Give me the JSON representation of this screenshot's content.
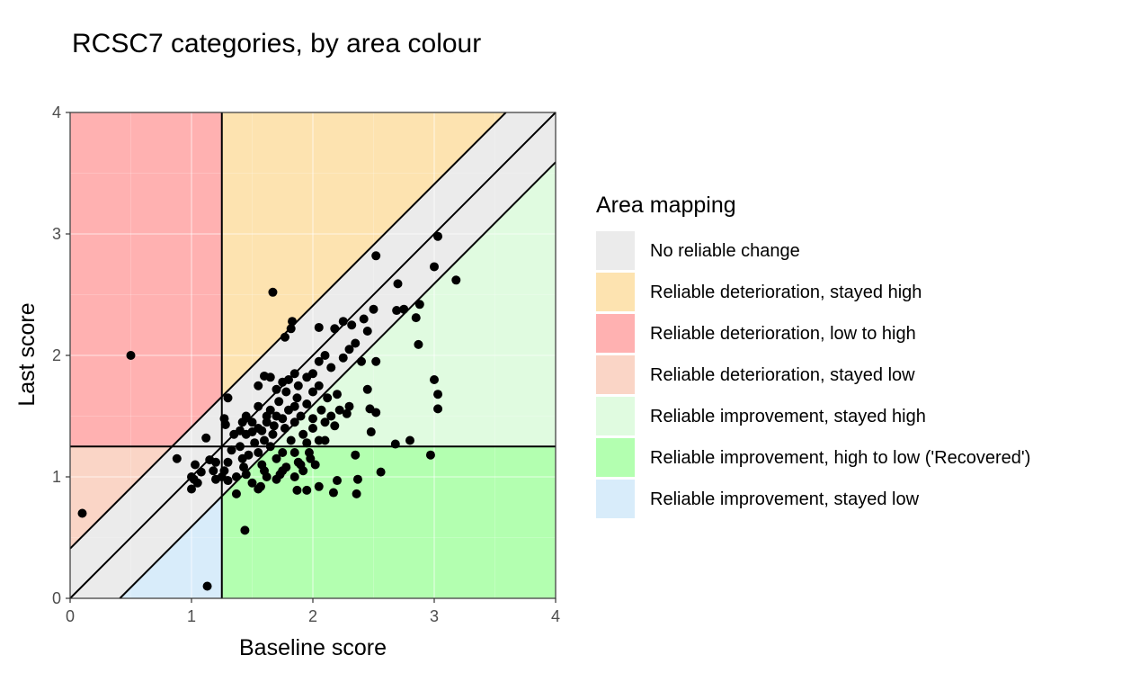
{
  "chart_data": {
    "type": "scatter",
    "title": "RCSC7 categories, by area colour",
    "xlabel": "Baseline score",
    "ylabel": "Last score",
    "xlim": [
      0,
      4
    ],
    "ylim": [
      0,
      4
    ],
    "x_ticks": [
      "0",
      "1",
      "2",
      "3",
      "4"
    ],
    "y_ticks": [
      "0",
      "1",
      "2",
      "3",
      "4"
    ],
    "grid": true,
    "cutoff": 1.25,
    "reliable_change_index": 0.41,
    "legend": {
      "title": "Area mapping",
      "placement": "right",
      "entries": [
        {
          "label": "No reliable change",
          "color": "#ebebeb"
        },
        {
          "label": "Reliable deterioration, stayed high",
          "color": "#fde3b0"
        },
        {
          "label": "Reliable deterioration, low to high",
          "color": "#ffb1b1"
        },
        {
          "label": "Reliable deterioration, stayed low",
          "color": "#fad5c6"
        },
        {
          "label": "Reliable improvement, stayed high",
          "color": "#e0fbe0"
        },
        {
          "label": "Reliable improvement, high to low ('Recovered')",
          "color": "#b3ffb0"
        },
        {
          "label": "Reliable improvement, stayed low",
          "color": "#d8ecfa"
        }
      ]
    },
    "points": [
      [
        0.5,
        2.0
      ],
      [
        0.1,
        0.7
      ],
      [
        1.13,
        0.1
      ],
      [
        1.67,
        2.52
      ],
      [
        1.44,
        0.56
      ],
      [
        2.52,
        2.82
      ],
      [
        3.03,
        2.98
      ],
      [
        3.0,
        2.73
      ],
      [
        3.18,
        2.62
      ],
      [
        2.7,
        2.59
      ],
      [
        2.88,
        2.42
      ],
      [
        2.85,
        2.31
      ],
      [
        2.87,
        2.09
      ],
      [
        2.69,
        2.37
      ],
      [
        2.75,
        2.38
      ],
      [
        3.0,
        1.8
      ],
      [
        3.03,
        1.68
      ],
      [
        3.03,
        1.56
      ],
      [
        2.97,
        1.18
      ],
      [
        2.8,
        1.3
      ],
      [
        2.68,
        1.27
      ],
      [
        2.56,
        1.04
      ],
      [
        2.36,
        0.86
      ],
      [
        2.37,
        0.98
      ],
      [
        2.35,
        1.18
      ],
      [
        2.17,
        0.87
      ],
      [
        2.2,
        0.97
      ],
      [
        2.05,
        0.92
      ],
      [
        1.95,
        0.89
      ],
      [
        1.87,
        0.89
      ],
      [
        1.85,
        1.0
      ],
      [
        1.9,
        1.1
      ],
      [
        1.75,
        1.05
      ],
      [
        1.7,
        0.98
      ],
      [
        1.62,
        1.0
      ],
      [
        1.55,
        0.9
      ],
      [
        1.5,
        0.95
      ],
      [
        1.45,
        1.02
      ],
      [
        1.37,
        1.0
      ],
      [
        1.37,
        0.86
      ],
      [
        1.3,
        0.97
      ],
      [
        1.27,
        1.05
      ],
      [
        1.2,
        0.98
      ],
      [
        1.18,
        1.05
      ],
      [
        1.15,
        1.14
      ],
      [
        1.12,
        1.32
      ],
      [
        1.08,
        1.04
      ],
      [
        1.0,
        0.9
      ],
      [
        1.02,
        0.98
      ],
      [
        1.05,
        0.95
      ],
      [
        1.0,
        1.0
      ],
      [
        1.03,
        1.1
      ],
      [
        0.88,
        1.15
      ],
      [
        1.2,
        1.12
      ],
      [
        1.28,
        1.43
      ],
      [
        1.3,
        1.65
      ],
      [
        1.27,
        1.48
      ],
      [
        1.4,
        1.25
      ],
      [
        1.42,
        1.15
      ],
      [
        1.45,
        1.35
      ],
      [
        1.5,
        1.37
      ],
      [
        1.55,
        1.4
      ],
      [
        1.55,
        1.2
      ],
      [
        1.58,
        1.1
      ],
      [
        1.6,
        1.05
      ],
      [
        1.6,
        1.3
      ],
      [
        1.62,
        1.45
      ],
      [
        1.65,
        1.55
      ],
      [
        1.67,
        1.35
      ],
      [
        1.7,
        1.5
      ],
      [
        1.72,
        1.62
      ],
      [
        1.75,
        1.2
      ],
      [
        1.77,
        1.4
      ],
      [
        1.78,
        1.7
      ],
      [
        1.8,
        1.55
      ],
      [
        1.8,
        1.8
      ],
      [
        1.82,
        1.3
      ],
      [
        1.85,
        1.45
      ],
      [
        1.87,
        1.65
      ],
      [
        1.88,
        1.75
      ],
      [
        1.9,
        1.5
      ],
      [
        1.92,
        1.35
      ],
      [
        1.95,
        1.6
      ],
      [
        1.97,
        1.2
      ],
      [
        2.0,
        1.85
      ],
      [
        2.0,
        1.4
      ],
      [
        2.02,
        1.1
      ],
      [
        2.05,
        1.75
      ],
      [
        2.07,
        1.55
      ],
      [
        2.1,
        1.3
      ],
      [
        2.12,
        1.65
      ],
      [
        2.15,
        1.5
      ],
      [
        2.18,
        1.42
      ],
      [
        2.2,
        1.68
      ],
      [
        2.22,
        1.55
      ],
      [
        2.25,
        1.98
      ],
      [
        2.3,
        2.05
      ],
      [
        2.32,
        2.25
      ],
      [
        2.35,
        2.1
      ],
      [
        2.4,
        1.95
      ],
      [
        2.42,
        2.3
      ],
      [
        2.45,
        2.2
      ],
      [
        2.5,
        2.38
      ],
      [
        2.52,
        1.95
      ],
      [
        2.47,
        1.56
      ],
      [
        2.45,
        1.72
      ],
      [
        2.48,
        1.37
      ],
      [
        2.52,
        1.53
      ],
      [
        2.05,
        2.23
      ],
      [
        2.18,
        2.22
      ],
      [
        2.25,
        2.28
      ],
      [
        1.82,
        2.22
      ],
      [
        1.83,
        2.28
      ],
      [
        1.77,
        2.15
      ],
      [
        1.65,
        1.82
      ],
      [
        1.6,
        1.83
      ],
      [
        1.55,
        1.75
      ],
      [
        1.7,
        1.72
      ],
      [
        1.75,
        1.78
      ],
      [
        1.85,
        1.85
      ],
      [
        1.95,
        1.82
      ],
      [
        2.0,
        1.7
      ],
      [
        2.05,
        1.95
      ],
      [
        2.1,
        2.0
      ],
      [
        2.15,
        1.9
      ],
      [
        2.28,
        1.52
      ],
      [
        2.3,
        1.58
      ],
      [
        2.1,
        1.45
      ],
      [
        2.05,
        1.3
      ],
      [
        1.98,
        1.15
      ],
      [
        1.92,
        1.05
      ],
      [
        1.85,
        1.2
      ],
      [
        1.78,
        1.08
      ],
      [
        1.7,
        1.15
      ],
      [
        1.65,
        1.25
      ],
      [
        1.58,
        1.38
      ],
      [
        1.52,
        1.28
      ],
      [
        1.47,
        1.18
      ],
      [
        1.43,
        1.08
      ],
      [
        1.4,
        1.38
      ],
      [
        1.35,
        1.35
      ],
      [
        1.33,
        1.22
      ],
      [
        1.3,
        1.12
      ],
      [
        1.25,
        1.0
      ],
      [
        1.57,
        0.92
      ],
      [
        1.73,
        1.02
      ],
      [
        1.88,
        1.12
      ],
      [
        2.0,
        1.48
      ],
      [
        1.95,
        1.28
      ],
      [
        1.85,
        1.58
      ],
      [
        1.75,
        1.48
      ],
      [
        1.68,
        1.42
      ],
      [
        1.62,
        1.5
      ],
      [
        1.55,
        1.58
      ],
      [
        1.5,
        1.45
      ],
      [
        1.45,
        1.5
      ],
      [
        1.42,
        1.45
      ]
    ]
  }
}
